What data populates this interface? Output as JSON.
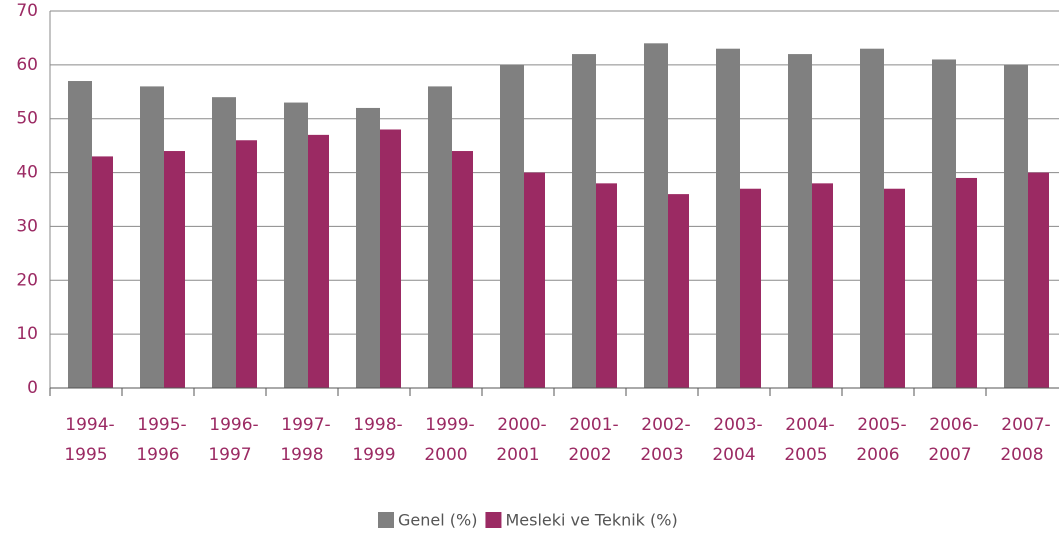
{
  "chart_data": {
    "type": "bar",
    "categories": [
      [
        "1994-",
        "1995"
      ],
      [
        "1995-",
        "1996"
      ],
      [
        "1996-",
        "1997"
      ],
      [
        "1997-",
        "1998"
      ],
      [
        "1998-",
        "1999"
      ],
      [
        "1999-",
        "2000"
      ],
      [
        "2000-",
        "2001"
      ],
      [
        "2001-",
        "2002"
      ],
      [
        "2002-",
        "2003"
      ],
      [
        "2003-",
        "2004"
      ],
      [
        "2004-",
        "2005"
      ],
      [
        "2005-",
        "2006"
      ],
      [
        "2006-",
        "2007"
      ],
      [
        "2007-",
        "2008"
      ]
    ],
    "series": [
      {
        "name": "Genel (%)",
        "color": "#808080",
        "values": [
          57,
          56,
          54,
          53,
          52,
          56,
          60,
          62,
          64,
          63,
          62,
          63,
          61,
          60
        ]
      },
      {
        "name": "Mesleki ve Teknik (%)",
        "color": "#9b2a63",
        "values": [
          43,
          44,
          46,
          47,
          48,
          44,
          40,
          38,
          36,
          37,
          38,
          37,
          39,
          40
        ]
      }
    ],
    "ylim": [
      0,
      70
    ],
    "yticks": [
      0,
      10,
      20,
      30,
      40,
      50,
      60,
      70
    ],
    "grid": true,
    "legend": "bottom"
  }
}
